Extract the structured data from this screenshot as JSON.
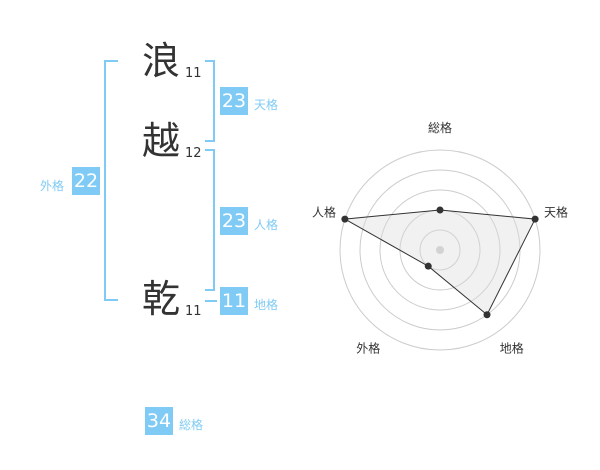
{
  "name_chars": [
    {
      "char": "浪",
      "strokes": "11"
    },
    {
      "char": "越",
      "strokes": "12"
    },
    {
      "char": "乾",
      "strokes": "11"
    }
  ],
  "results": {
    "tenkaku": {
      "label": "天格",
      "value": "23"
    },
    "jinkaku": {
      "label": "人格",
      "value": "23"
    },
    "chikaku": {
      "label": "地格",
      "value": "11"
    },
    "gaikaku": {
      "label": "外格",
      "value": "22"
    },
    "soukaku": {
      "label": "総格",
      "value": "34"
    }
  },
  "accent_color": "#7fcbf5",
  "chart_data": {
    "type": "radar",
    "axes": [
      "総格",
      "天格",
      "地格",
      "外格",
      "人格"
    ],
    "values": [
      2,
      5,
      4,
      1,
      5
    ],
    "range": [
      0,
      5
    ],
    "grid_levels": 5
  }
}
